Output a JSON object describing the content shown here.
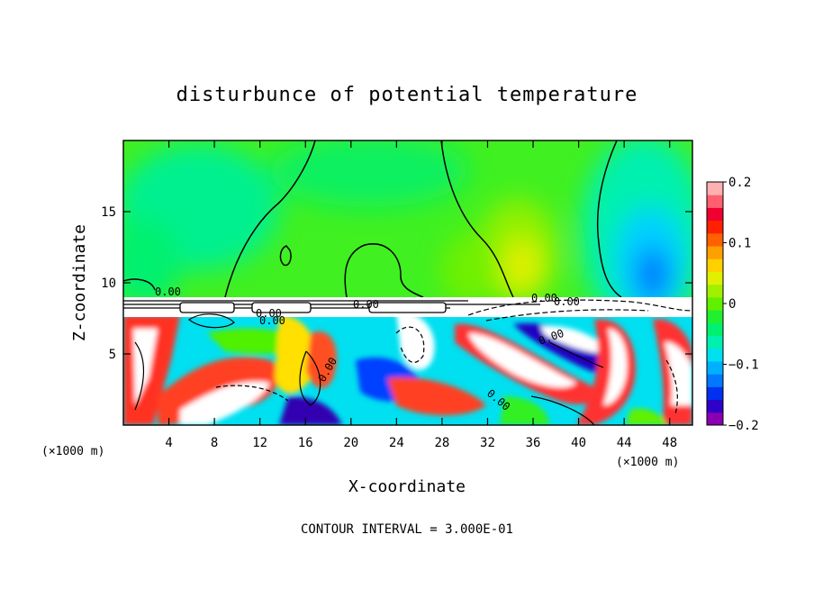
{
  "chart_data": {
    "type": "heatmap",
    "title": "disturbunce of potential temperature",
    "xlabel": "X-coordinate",
    "ylabel": "Z-coordinate",
    "x_unit": "(×1000 m)",
    "z_unit": "(×1000 m)",
    "x_ticks": [
      "4",
      "8",
      "12",
      "16",
      "20",
      "24",
      "28",
      "32",
      "36",
      "40",
      "44",
      "48"
    ],
    "z_ticks": [
      "5",
      "10",
      "15"
    ],
    "x_tick_values": [
      4,
      8,
      12,
      16,
      20,
      24,
      28,
      32,
      36,
      40,
      44,
      48
    ],
    "z_tick_values": [
      5,
      10,
      15
    ],
    "xlim": [
      0,
      50
    ],
    "zlim": [
      0,
      20
    ],
    "colorbar": {
      "min": -0.2,
      "max": 0.2,
      "tick_labels": [
        "0.2",
        "0.1",
        "0",
        "−0.1",
        "−0.2"
      ],
      "tick_values": [
        0.2,
        0.1,
        0,
        -0.1,
        -0.2
      ],
      "colors": [
        "#8a00b0",
        "#2f00c8",
        "#0030f0",
        "#0078ff",
        "#00b0ff",
        "#00e0f0",
        "#00f0b0",
        "#00f070",
        "#20f030",
        "#60f000",
        "#a0f000",
        "#e0f000",
        "#ffd000",
        "#ffa000",
        "#ff6000",
        "#ff2000",
        "#f00030",
        "#ff6070",
        "#ffb0b0"
      ]
    },
    "contour_labels": [
      "0.00",
      "0.00",
      "0.00",
      "0.00",
      "0.00",
      "0.00",
      "0.00",
      "0.00",
      "0.00"
    ],
    "contour_interval_text": "CONTOUR INTERVAL = 3.000E-01",
    "grid": false
  }
}
